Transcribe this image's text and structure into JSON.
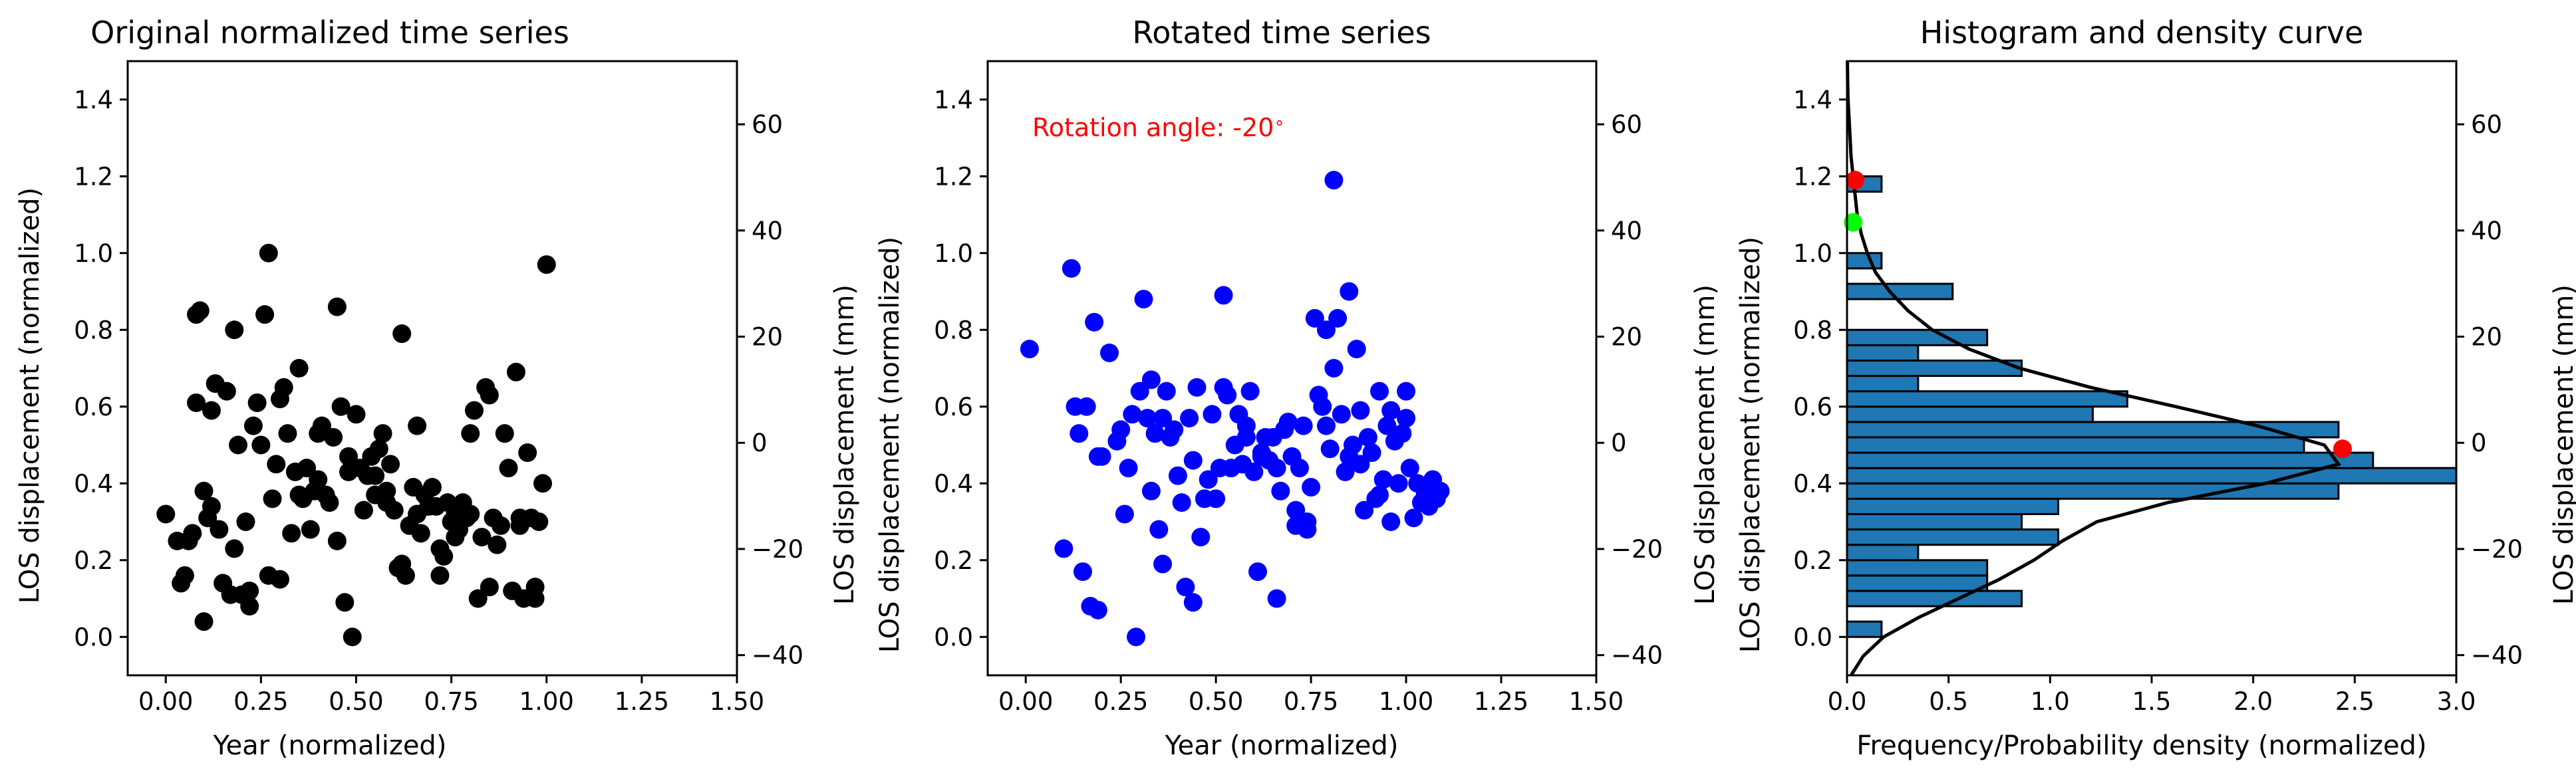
{
  "chart_data": [
    {
      "type": "scatter",
      "title": "Original normalized time series",
      "xlabel": "Year (normalized)",
      "ylabel": "LOS displacement (normalized)",
      "ylabel_right": "LOS displacement (mm)",
      "xlim": [
        -0.1,
        1.5
      ],
      "ylim": [
        -0.1,
        1.5
      ],
      "ylim_right": [
        -43.8,
        71.9
      ],
      "xticks": [
        "0.00",
        "0.25",
        "0.50",
        "0.75",
        "1.00",
        "1.25",
        "1.50"
      ],
      "yticks": [
        "0.0",
        "0.2",
        "0.4",
        "0.6",
        "0.8",
        "1.0",
        "1.2",
        "1.4"
      ],
      "yticks_right": [
        "−40",
        "−20",
        "0",
        "20",
        "40",
        "60"
      ],
      "grid": false,
      "color": "#000000",
      "x": [
        0.0,
        0.03,
        0.04,
        0.05,
        0.06,
        0.07,
        0.08,
        0.09,
        0.1,
        0.1,
        0.11,
        0.12,
        0.13,
        0.14,
        0.15,
        0.16,
        0.17,
        0.18,
        0.19,
        0.2,
        0.21,
        0.22,
        0.23,
        0.24,
        0.25,
        0.26,
        0.27,
        0.28,
        0.29,
        0.3,
        0.31,
        0.32,
        0.33,
        0.34,
        0.35,
        0.36,
        0.37,
        0.38,
        0.39,
        0.4,
        0.41,
        0.42,
        0.43,
        0.44,
        0.45,
        0.46,
        0.47,
        0.48,
        0.49,
        0.5,
        0.51,
        0.52,
        0.53,
        0.54,
        0.55,
        0.56,
        0.57,
        0.58,
        0.59,
        0.6,
        0.61,
        0.62,
        0.63,
        0.64,
        0.65,
        0.66,
        0.67,
        0.68,
        0.69,
        0.7,
        0.71,
        0.72,
        0.73,
        0.74,
        0.75,
        0.76,
        0.77,
        0.78,
        0.79,
        0.8,
        0.81,
        0.82,
        0.83,
        0.84,
        0.85,
        0.86,
        0.87,
        0.88,
        0.89,
        0.9,
        0.91,
        0.92,
        0.93,
        0.94,
        0.95,
        0.96,
        0.97,
        0.98,
        0.99,
        1.0,
        0.08,
        0.27,
        0.45,
        0.62,
        0.93,
        0.18,
        0.35,
        0.55,
        0.72,
        0.85,
        0.12,
        0.3,
        0.48,
        0.66,
        0.8,
        0.22,
        0.4,
        0.58,
        0.76,
        0.97
      ],
      "y": [
        0.32,
        0.25,
        0.14,
        0.16,
        0.25,
        0.27,
        0.84,
        0.85,
        0.04,
        0.38,
        0.31,
        0.59,
        0.66,
        0.28,
        0.14,
        0.64,
        0.11,
        0.8,
        0.5,
        0.11,
        0.3,
        0.08,
        0.55,
        0.61,
        0.5,
        0.84,
        1.0,
        0.36,
        0.45,
        0.62,
        0.65,
        0.53,
        0.27,
        0.43,
        0.7,
        0.36,
        0.44,
        0.28,
        0.38,
        0.41,
        0.55,
        0.37,
        0.35,
        0.52,
        0.86,
        0.6,
        0.09,
        0.47,
        0.0,
        0.58,
        0.44,
        0.33,
        0.42,
        0.47,
        0.37,
        0.49,
        0.53,
        0.38,
        0.45,
        0.33,
        0.18,
        0.79,
        0.16,
        0.29,
        0.39,
        0.32,
        0.27,
        0.37,
        0.34,
        0.39,
        0.34,
        0.16,
        0.21,
        0.35,
        0.3,
        0.32,
        0.28,
        0.35,
        0.31,
        0.53,
        0.59,
        0.1,
        0.26,
        0.65,
        0.63,
        0.31,
        0.24,
        0.29,
        0.53,
        0.44,
        0.12,
        0.69,
        0.31,
        0.1,
        0.48,
        0.31,
        0.13,
        0.3,
        0.4,
        0.97,
        0.61,
        0.16,
        0.25,
        0.19,
        0.29,
        0.23,
        0.37,
        0.42,
        0.23,
        0.13,
        0.34,
        0.15,
        0.43,
        0.55,
        0.32,
        0.12,
        0.53,
        0.35,
        0.26,
        0.1
      ]
    },
    {
      "type": "scatter",
      "title": "Rotated time series",
      "xlabel": "Year (normalized)",
      "ylabel": "LOS displacement (normalized)",
      "ylabel_right": "LOS displacement (mm)",
      "annotation": "Rotation angle: -20$^\\circ$",
      "annotation_text": "Rotation angle: -20",
      "annotation_deg": "∘",
      "annotation_color": "#ff0000",
      "xlim": [
        -0.1,
        1.5
      ],
      "ylim": [
        -0.1,
        1.5
      ],
      "ylim_right": [
        -43.8,
        71.9
      ],
      "xticks": [
        "0.00",
        "0.25",
        "0.50",
        "0.75",
        "1.00",
        "1.25",
        "1.50"
      ],
      "yticks": [
        "0.0",
        "0.2",
        "0.4",
        "0.6",
        "0.8",
        "1.0",
        "1.2",
        "1.4"
      ],
      "yticks_right": [
        "−40",
        "−20",
        "0",
        "20",
        "40",
        "60"
      ],
      "grid": false,
      "color": "#0000ff",
      "x": [
        0.01,
        0.1,
        0.12,
        0.13,
        0.14,
        0.16,
        0.17,
        0.18,
        0.19,
        0.2,
        0.22,
        0.24,
        0.25,
        0.27,
        0.28,
        0.29,
        0.3,
        0.31,
        0.32,
        0.33,
        0.34,
        0.35,
        0.36,
        0.37,
        0.38,
        0.39,
        0.4,
        0.41,
        0.42,
        0.43,
        0.44,
        0.45,
        0.46,
        0.47,
        0.48,
        0.49,
        0.5,
        0.51,
        0.52,
        0.53,
        0.54,
        0.55,
        0.56,
        0.57,
        0.58,
        0.59,
        0.6,
        0.61,
        0.62,
        0.63,
        0.64,
        0.65,
        0.66,
        0.67,
        0.68,
        0.69,
        0.7,
        0.71,
        0.72,
        0.73,
        0.74,
        0.75,
        0.76,
        0.77,
        0.78,
        0.79,
        0.8,
        0.81,
        0.82,
        0.83,
        0.84,
        0.85,
        0.86,
        0.87,
        0.88,
        0.89,
        0.9,
        0.91,
        0.92,
        0.93,
        0.94,
        0.95,
        0.96,
        0.97,
        0.98,
        0.99,
        1.0,
        1.01,
        1.02,
        1.03,
        1.04,
        1.05,
        1.06,
        1.07,
        1.08,
        1.09,
        0.15,
        0.19,
        0.26,
        0.33,
        0.44,
        0.52,
        0.58,
        0.62,
        0.66,
        0.71,
        0.74,
        0.79,
        0.81,
        0.85,
        0.88,
        0.93,
        0.96,
        1.0,
        0.47,
        0.36
      ],
      "y": [
        0.75,
        0.23,
        0.96,
        0.6,
        0.53,
        0.6,
        0.08,
        0.82,
        0.47,
        0.47,
        0.74,
        0.51,
        0.54,
        0.44,
        0.58,
        0.0,
        0.64,
        0.88,
        0.57,
        0.38,
        0.53,
        0.28,
        0.57,
        0.64,
        0.52,
        0.54,
        0.42,
        0.35,
        0.13,
        0.57,
        0.46,
        0.65,
        0.26,
        0.36,
        0.41,
        0.58,
        0.36,
        0.44,
        0.89,
        0.63,
        0.44,
        0.5,
        0.58,
        0.45,
        0.55,
        0.64,
        0.43,
        0.17,
        0.48,
        0.52,
        0.46,
        0.52,
        0.1,
        0.38,
        0.54,
        0.56,
        0.47,
        0.33,
        0.44,
        0.55,
        0.3,
        0.39,
        0.83,
        0.63,
        0.6,
        0.8,
        0.49,
        1.19,
        0.83,
        0.58,
        0.43,
        0.9,
        0.5,
        0.75,
        0.45,
        0.33,
        0.52,
        0.48,
        0.36,
        0.64,
        0.41,
        0.55,
        0.3,
        0.51,
        0.4,
        0.53,
        0.57,
        0.44,
        0.31,
        0.4,
        0.35,
        0.37,
        0.34,
        0.41,
        0.36,
        0.38,
        0.17,
        0.07,
        0.32,
        0.67,
        0.09,
        0.65,
        0.52,
        0.47,
        0.44,
        0.29,
        0.28,
        0.55,
        0.7,
        0.47,
        0.59,
        0.37,
        0.59,
        0.64,
        0.36,
        0.19
      ]
    },
    {
      "type": "bar",
      "orientation": "horizontal",
      "title": "Histogram and density curve",
      "xlabel": "Frequency/Probability density (normalized)",
      "ylabel": "LOS displacement (normalized)",
      "ylabel_right": "LOS displacement (mm)",
      "xlim": [
        0.0,
        3.0
      ],
      "ylim": [
        -0.1,
        1.5
      ],
      "ylim_right": [
        -43.8,
        71.9
      ],
      "xticks": [
        "0.0",
        "0.5",
        "1.0",
        "1.5",
        "2.0",
        "2.5",
        "3.0"
      ],
      "yticks": [
        "0.0",
        "0.2",
        "0.4",
        "0.6",
        "0.8",
        "1.0",
        "1.2",
        "1.4"
      ],
      "yticks_right": [
        "−40",
        "−20",
        "0",
        "20",
        "40",
        "60"
      ],
      "grid": false,
      "bar_color": "#1f77b4",
      "bin_width": 0.04,
      "bin_starts": [
        0.0,
        0.04,
        0.08,
        0.12,
        0.16,
        0.2,
        0.24,
        0.28,
        0.32,
        0.36,
        0.4,
        0.44,
        0.48,
        0.52,
        0.56,
        0.6,
        0.64,
        0.68,
        0.72,
        0.76,
        0.8,
        0.84,
        0.88,
        0.92,
        0.96,
        1.0,
        1.04,
        1.08,
        1.12,
        1.16
      ],
      "values": [
        0.17,
        0.0,
        0.86,
        0.69,
        0.69,
        0.35,
        1.04,
        0.86,
        1.04,
        2.42,
        3.0,
        2.59,
        2.25,
        2.42,
        1.21,
        1.38,
        0.35,
        0.86,
        0.35,
        0.69,
        0.0,
        0.0,
        0.52,
        0.0,
        0.17,
        0.0,
        0.0,
        0.0,
        0.0,
        0.17
      ],
      "density_curve": {
        "color": "#000000",
        "y": [
          -0.1,
          -0.05,
          0.0,
          0.05,
          0.1,
          0.15,
          0.2,
          0.25,
          0.3,
          0.35,
          0.4,
          0.45,
          0.5,
          0.55,
          0.6,
          0.65,
          0.7,
          0.75,
          0.8,
          0.85,
          0.9,
          0.95,
          1.0,
          1.05,
          1.1,
          1.15,
          1.2,
          1.25,
          1.3,
          1.35,
          1.4,
          1.45,
          1.5
        ],
        "x": [
          0.02,
          0.08,
          0.18,
          0.35,
          0.55,
          0.75,
          0.92,
          1.06,
          1.23,
          1.58,
          2.06,
          2.42,
          2.35,
          2.02,
          1.62,
          1.2,
          0.85,
          0.6,
          0.42,
          0.3,
          0.21,
          0.14,
          0.1,
          0.07,
          0.05,
          0.04,
          0.03,
          0.02,
          0.015,
          0.01,
          0.005,
          0.003,
          0.002
        ]
      },
      "markers": [
        {
          "x": 2.44,
          "y": 0.49,
          "color": "#ff0000"
        },
        {
          "x": 0.04,
          "y": 1.19,
          "color": "#ff0000"
        },
        {
          "x": 0.03,
          "y": 1.08,
          "color": "#00ff00"
        }
      ]
    }
  ]
}
